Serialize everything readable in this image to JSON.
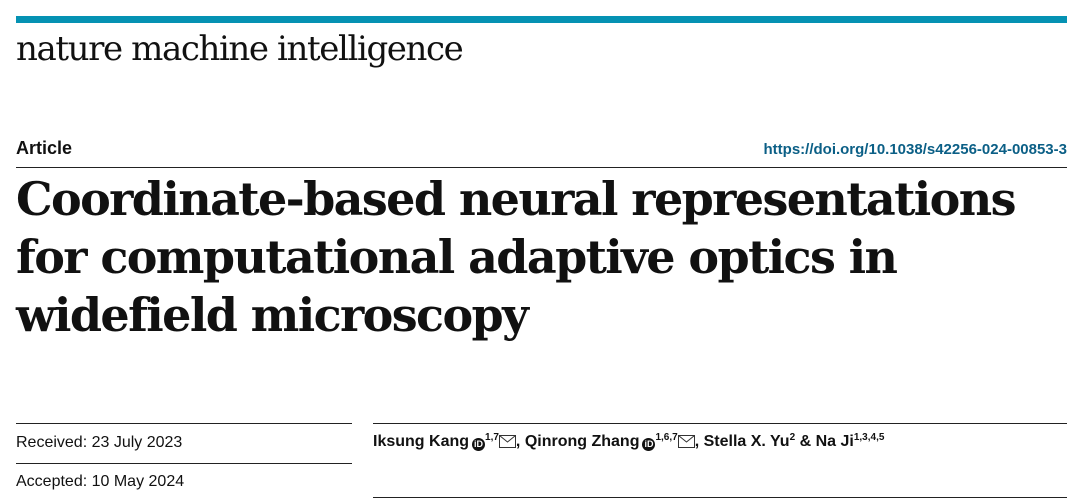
{
  "journal": {
    "name": "nature machine intelligence",
    "accent_color": "#0592b3"
  },
  "article": {
    "type_label": "Article",
    "doi": "https://doi.org/10.1038/s42256-024-00853-3",
    "title_lines": [
      "Coordinate-based neural representations",
      "for computational adaptive optics in",
      "widefield microscopy"
    ],
    "received": "Received: 23 July 2023",
    "accepted": "Accepted: 10 May 2024"
  },
  "authors": [
    {
      "name": "Iksung Kang",
      "orcid": true,
      "affiliations": "1,7",
      "corresponding": true,
      "separator_after": ", "
    },
    {
      "name": "Qinrong Zhang",
      "orcid": true,
      "affiliations": "1,6,7",
      "corresponding": true,
      "separator_after": ", "
    },
    {
      "name": "Stella X. Yu",
      "orcid": false,
      "affiliations": "2",
      "corresponding": false,
      "separator_after": " & "
    },
    {
      "name": "Na Ji",
      "orcid": false,
      "affiliations": "1,3,4,5",
      "corresponding": false,
      "separator_after": ""
    }
  ],
  "icons": {
    "orcid": "orcid-icon",
    "mail": "envelope-icon"
  }
}
